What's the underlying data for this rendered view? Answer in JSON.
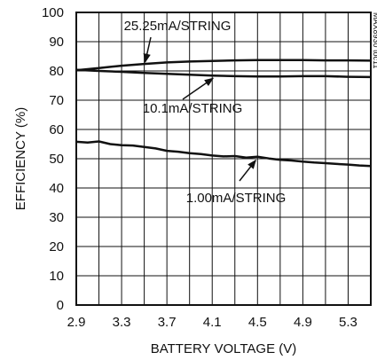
{
  "chart_data": {
    "type": "line",
    "title": "",
    "xlabel": "BATTERY VOLTAGE (V)",
    "ylabel": "EFFICIENCY (%)",
    "xlim": [
      2.9,
      5.5
    ],
    "ylim": [
      0,
      100
    ],
    "grid": true,
    "x_ticks": [
      "2.9",
      "3.3",
      "3.7",
      "4.1",
      "4.5",
      "4.9",
      "5.3"
    ],
    "y_ticks": [
      "0",
      "10",
      "20",
      "30",
      "40",
      "50",
      "60",
      "70",
      "80",
      "90",
      "100"
    ],
    "series": [
      {
        "name": "25.25mA/STRING",
        "x": [
          2.9,
          3.1,
          3.3,
          3.5,
          3.7,
          3.9,
          4.1,
          4.3,
          4.5,
          4.7,
          4.9,
          5.1,
          5.3,
          5.5
        ],
        "values": [
          80.2,
          81.0,
          81.8,
          82.4,
          82.9,
          83.2,
          83.4,
          83.6,
          83.7,
          83.7,
          83.7,
          83.6,
          83.6,
          83.5
        ]
      },
      {
        "name": "10.1mA/STRING",
        "x": [
          2.9,
          3.1,
          3.3,
          3.5,
          3.7,
          3.9,
          4.1,
          4.3,
          4.5,
          4.7,
          4.9,
          5.1,
          5.3,
          5.5
        ],
        "values": [
          80.4,
          80.0,
          79.7,
          79.3,
          79.0,
          78.7,
          78.4,
          78.2,
          78.1,
          78.1,
          78.2,
          78.2,
          78.0,
          77.9
        ]
      },
      {
        "name": "1.00mA/STRING",
        "x": [
          2.9,
          3.0,
          3.1,
          3.2,
          3.3,
          3.4,
          3.5,
          3.6,
          3.7,
          3.8,
          3.9,
          4.0,
          4.1,
          4.2,
          4.3,
          4.4,
          4.5,
          4.6,
          4.7,
          4.8,
          4.9,
          5.0,
          5.1,
          5.2,
          5.3,
          5.4,
          5.5
        ],
        "values": [
          55.8,
          55.5,
          55.9,
          55.0,
          54.6,
          54.5,
          54.0,
          53.5,
          52.7,
          52.4,
          51.9,
          51.6,
          51.1,
          50.8,
          50.9,
          50.4,
          50.7,
          50.1,
          49.6,
          49.4,
          49.0,
          48.7,
          48.5,
          48.2,
          48.0,
          47.7,
          47.5
        ]
      }
    ],
    "annotations": [
      {
        "text": "25.25mA/STRING",
        "target_series": 0,
        "at_x": 3.5
      },
      {
        "text": "10.1mA/STRING",
        "target_series": 1,
        "at_x": 4.1
      },
      {
        "text": "1.00mA/STRING",
        "target_series": 2,
        "at_x": 4.5
      }
    ],
    "side_id": "MAX8930 toc11",
    "colors": {
      "line": "#111111",
      "grid": "#111111",
      "frame": "#111111"
    }
  }
}
